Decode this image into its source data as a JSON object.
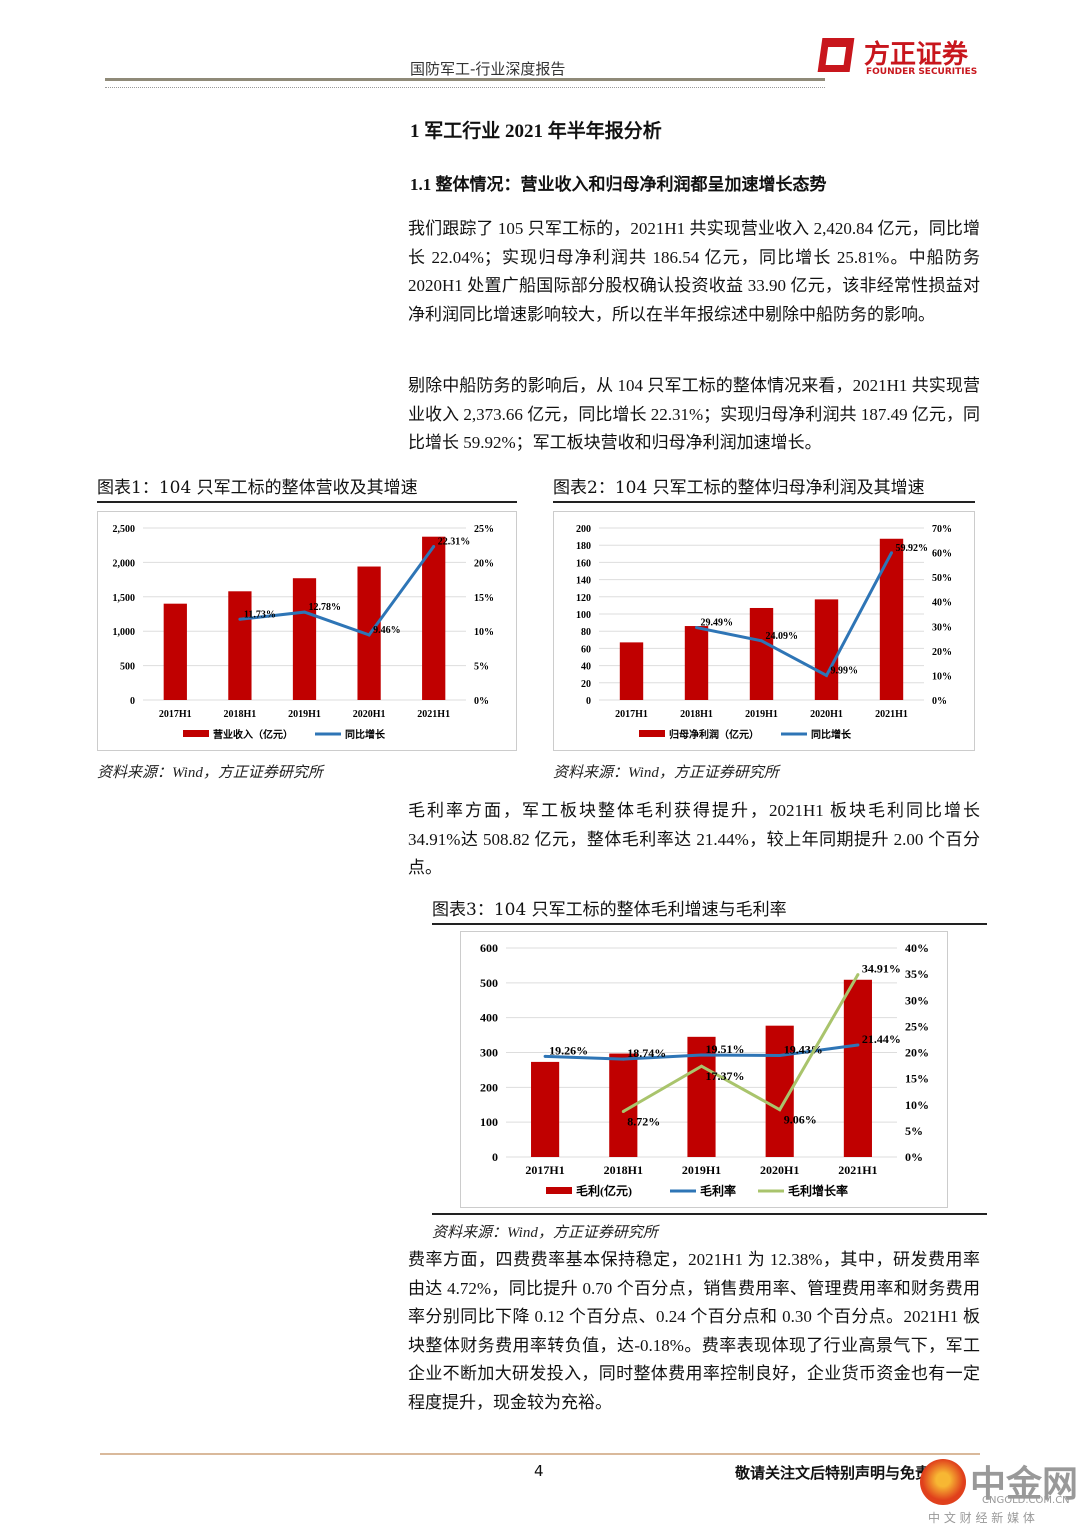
{
  "header": {
    "title": "国防军工-行业深度报告",
    "logo_cn": "方正证券",
    "logo_en": "FOUNDER SECURITIES"
  },
  "section": {
    "h1": "1   军工行业 2021 年半年报分析",
    "h2": "1.1   整体情况：营业收入和归母净利润都呈加速增长态势"
  },
  "paragraphs": [
    "我们跟踪了 105 只军工标的，2021H1 共实现营业收入 2,420.84 亿元，同比增长 22.04%；实现归母净利润共 186.54 亿元，同比增长 25.81%。中船防务 2020H1 处置广船国际部分股权确认投资收益 33.90 亿元，该非经常性损益对净利润同比增速影响较大，所以在半年报综述中剔除中船防务的影响。",
    "剔除中船防务的影响后，从 104 只军工标的整体情况来看，2021H1 共实现营业收入 2,373.66 亿元，同比增长 22.31%；实现归母净利润共 187.49 亿元，同比增长 59.92%；军工板块营收和归母净利润加速增长。",
    "毛利率方面，军工板块整体毛利获得提升，2021H1 板块毛利同比增长 34.91%达 508.82 亿元，整体毛利率达 21.44%，较上年同期提升 2.00 个百分点。",
    "费率方面，四费费率基本保持稳定，2021H1 为 12.38%，其中，研发费用率由达 4.72%，同比提升 0.70 个百分点，销售费用率、管理费用率和财务费用率分别同比下降 0.12 个百分点、0.24 个百分点和 0.30 个百分点。2021H1 板块整体财务费用率转负值，达-0.18%。费率表现体现了行业高景气下，军工企业不断加大研发投入，同时整体费用率控制良好，企业货币资金也有一定程度提升，现金较为充裕。"
  ],
  "source": "资料来源：Wind，方正证券研究所",
  "footer": {
    "page": "4",
    "disclaimer": "敬请关注文后特别声明与免责条款",
    "watermark_cn": "中金网",
    "watermark_en": "CNGOLD.COM.CN",
    "watermark_sub": "中 文 财 经 新 媒 体"
  },
  "chart_data": [
    {
      "type": "bar+line",
      "title": "图表1：104 只军工标的整体营收及其增速",
      "categories": [
        "2017H1",
        "2018H1",
        "2019H1",
        "2020H1",
        "2021H1"
      ],
      "y_left": {
        "min": 0,
        "max": 2500,
        "ticks": [
          "0",
          "500",
          "1,000",
          "1,500",
          "2,000",
          "2,500"
        ]
      },
      "y_right": {
        "min": 0,
        "max": 25,
        "ticks": [
          "0%",
          "5%",
          "10%",
          "15%",
          "20%",
          "25%"
        ]
      },
      "series": [
        {
          "name": "营业收入（亿元）",
          "kind": "bar",
          "axis": "left",
          "color": "#c00000",
          "values": [
            1400,
            1580,
            1770,
            1940,
            2373.66
          ]
        },
        {
          "name": "同比增长",
          "kind": "line",
          "axis": "right",
          "color": "#2e75b6",
          "values": [
            null,
            11.73,
            12.78,
            9.46,
            22.31
          ],
          "labels": [
            "",
            "11.73%",
            "12.78%",
            "9.46%",
            "22.31%"
          ]
        }
      ]
    },
    {
      "type": "bar+line",
      "title": "图表2：104 只军工标的整体归母净利润及其增速",
      "categories": [
        "2017H1",
        "2018H1",
        "2019H1",
        "2020H1",
        "2021H1"
      ],
      "y_left": {
        "min": 0,
        "max": 200,
        "ticks": [
          "0",
          "20",
          "40",
          "60",
          "80",
          "100",
          "120",
          "140",
          "160",
          "180",
          "200"
        ]
      },
      "y_right": {
        "min": 0,
        "max": 70,
        "ticks": [
          "0%",
          "10%",
          "20%",
          "30%",
          "40%",
          "50%",
          "60%",
          "70%"
        ]
      },
      "series": [
        {
          "name": "归母净利润（亿元）",
          "kind": "bar",
          "axis": "left",
          "color": "#c00000",
          "values": [
            67,
            86,
            107,
            117,
            187.49
          ]
        },
        {
          "name": "同比增长",
          "kind": "line",
          "axis": "right",
          "color": "#2e75b6",
          "values": [
            null,
            29.49,
            24.09,
            9.99,
            59.92
          ],
          "labels": [
            "",
            "29.49%",
            "24.09%",
            "9.99%",
            "59.92%"
          ]
        }
      ]
    },
    {
      "type": "bar+line",
      "title": "图表3：104 只军工标的整体毛利增速与毛利率",
      "categories": [
        "2017H1",
        "2018H1",
        "2019H1",
        "2020H1",
        "2021H1"
      ],
      "y_left": {
        "min": 0,
        "max": 600,
        "ticks": [
          "0",
          "100",
          "200",
          "300",
          "400",
          "500",
          "600"
        ]
      },
      "y_right": {
        "min": 0,
        "max": 40,
        "ticks": [
          "0%",
          "5%",
          "10%",
          "15%",
          "20%",
          "25%",
          "30%",
          "35%",
          "40%"
        ]
      },
      "series": [
        {
          "name": "毛利(亿元)",
          "kind": "bar",
          "axis": "left",
          "color": "#c00000",
          "values": [
            273,
            297,
            345,
            377,
            508.82
          ]
        },
        {
          "name": "毛利率",
          "kind": "line",
          "axis": "right",
          "color": "#2e75b6",
          "values": [
            19.26,
            18.74,
            19.51,
            19.43,
            21.44
          ],
          "labels": [
            "19.26%",
            "18.74%",
            "19.51%",
            "19.43%",
            "21.44%"
          ]
        },
        {
          "name": "毛利增长率",
          "kind": "line",
          "axis": "right",
          "color": "#a9c46c",
          "values": [
            null,
            8.72,
            17.37,
            9.06,
            34.91
          ],
          "labels": [
            "",
            "8.72%",
            "17.37%",
            "9.06%",
            "34.91%"
          ]
        }
      ]
    }
  ]
}
